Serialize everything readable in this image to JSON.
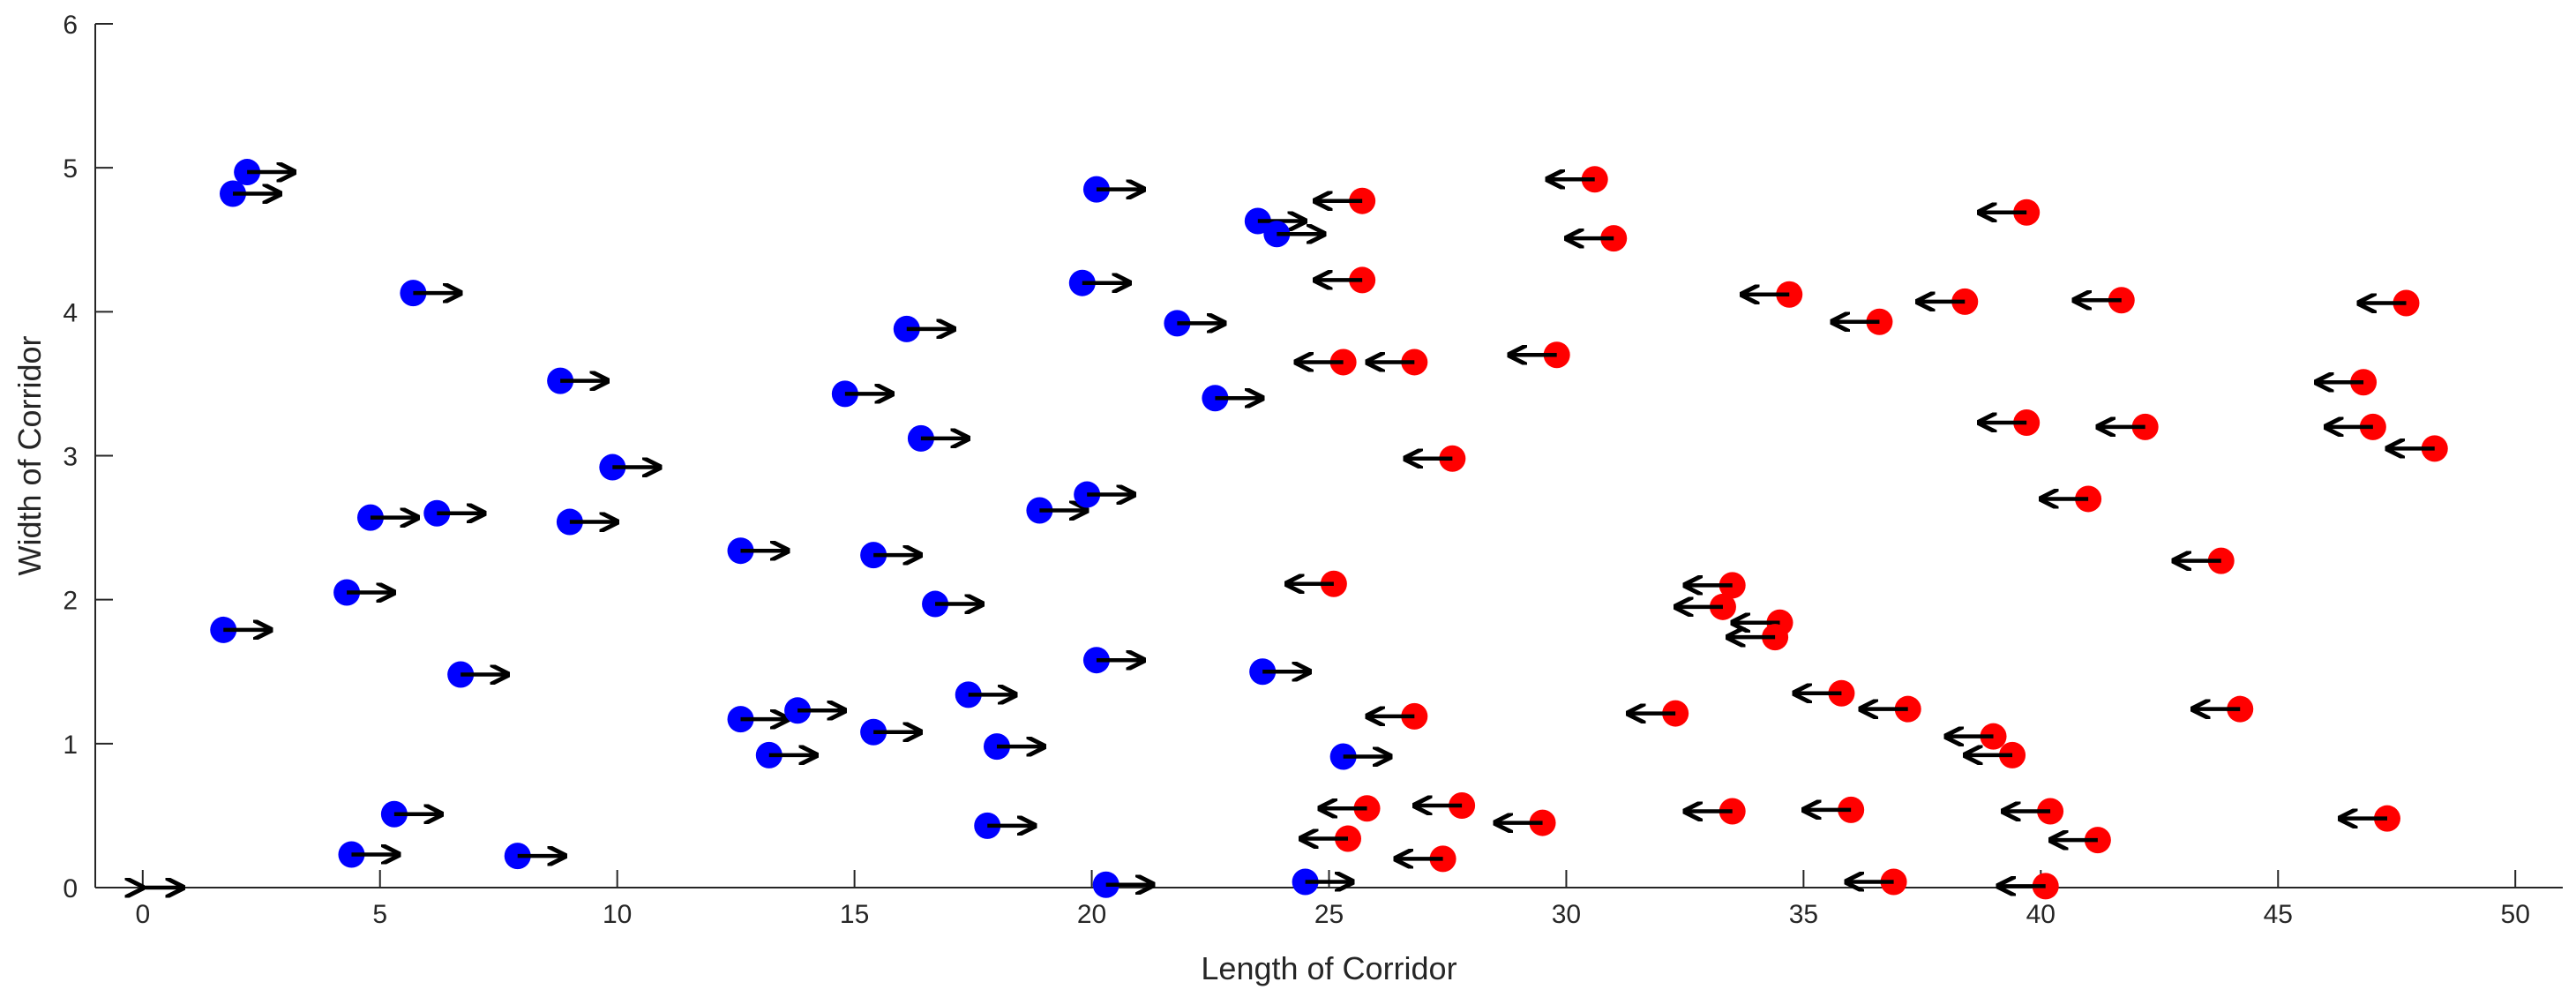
{
  "chart_data": {
    "type": "scatter",
    "title": "",
    "xlabel": "Length of Corridor",
    "ylabel": "Width of Corridor",
    "xlim": [
      -1,
      51
    ],
    "ylim": [
      0,
      6
    ],
    "x_ticks": [
      0,
      5,
      10,
      15,
      20,
      25,
      30,
      35,
      40,
      45,
      50
    ],
    "y_ticks": [
      0,
      1,
      2,
      3,
      4,
      5,
      6
    ],
    "grid": false,
    "marker_colors": {
      "blue": "#0000ff",
      "red": "#ff0000"
    },
    "arrow_color": "#000000",
    "arrow_length": 1.0,
    "legend_arrow": {
      "x": 0,
      "y": 0,
      "dx": 0.85,
      "double": true
    },
    "series": [
      {
        "color": "blue",
        "direction": "right",
        "points": [
          [
            2.2,
            4.97
          ],
          [
            1.9,
            4.82
          ],
          [
            5.7,
            4.13
          ],
          [
            8.8,
            3.52
          ],
          [
            9.9,
            2.92
          ],
          [
            4.8,
            2.57
          ],
          [
            6.2,
            2.6
          ],
          [
            9.0,
            2.54
          ],
          [
            4.3,
            2.05
          ],
          [
            1.7,
            1.79
          ],
          [
            6.7,
            1.48
          ],
          [
            4.4,
            0.23
          ],
          [
            5.3,
            0.51
          ],
          [
            7.9,
            0.22
          ],
          [
            12.6,
            2.34
          ],
          [
            12.6,
            1.17
          ],
          [
            13.8,
            1.23
          ],
          [
            13.2,
            0.92
          ],
          [
            14.8,
            3.43
          ],
          [
            15.4,
            2.31
          ],
          [
            15.4,
            1.08
          ],
          [
            16.1,
            3.88
          ],
          [
            16.4,
            3.12
          ],
          [
            16.7,
            1.97
          ],
          [
            17.4,
            1.34
          ],
          [
            18.0,
            0.98
          ],
          [
            17.8,
            0.43
          ],
          [
            18.9,
            2.62
          ],
          [
            19.8,
            4.2
          ],
          [
            19.9,
            2.73
          ],
          [
            20.1,
            4.85
          ],
          [
            20.1,
            1.58
          ],
          [
            20.3,
            0.02
          ],
          [
            21.8,
            3.92
          ],
          [
            22.6,
            3.4
          ],
          [
            23.5,
            4.63
          ],
          [
            23.9,
            4.54
          ],
          [
            23.6,
            1.5
          ],
          [
            25.3,
            0.91
          ],
          [
            24.5,
            0.04
          ]
        ]
      },
      {
        "color": "red",
        "direction": "left",
        "points": [
          [
            25.7,
            4.77
          ],
          [
            25.7,
            4.22
          ],
          [
            25.3,
            3.65
          ],
          [
            26.8,
            3.65
          ],
          [
            27.6,
            2.98
          ],
          [
            25.1,
            2.11
          ],
          [
            26.8,
            1.19
          ],
          [
            25.8,
            0.55
          ],
          [
            25.4,
            0.34
          ],
          [
            27.8,
            0.57
          ],
          [
            27.4,
            0.2
          ],
          [
            29.8,
            3.7
          ],
          [
            29.5,
            0.45
          ],
          [
            30.6,
            4.92
          ],
          [
            31.0,
            4.51
          ],
          [
            32.3,
            1.21
          ],
          [
            33.5,
            2.1
          ],
          [
            33.3,
            1.95
          ],
          [
            34.5,
            1.84
          ],
          [
            34.4,
            1.74
          ],
          [
            33.5,
            0.53
          ],
          [
            34.7,
            4.12
          ],
          [
            35.8,
            1.35
          ],
          [
            37.2,
            1.24
          ],
          [
            36.0,
            0.54
          ],
          [
            36.6,
            3.93
          ],
          [
            36.9,
            0.04
          ],
          [
            38.4,
            4.07
          ],
          [
            39.0,
            1.05
          ],
          [
            39.4,
            0.92
          ],
          [
            39.7,
            4.69
          ],
          [
            39.7,
            3.23
          ],
          [
            41.0,
            2.7
          ],
          [
            40.2,
            0.53
          ],
          [
            41.2,
            0.33
          ],
          [
            40.1,
            0.01
          ],
          [
            41.7,
            4.08
          ],
          [
            42.2,
            3.2
          ],
          [
            43.8,
            2.27
          ],
          [
            44.2,
            1.24
          ],
          [
            46.8,
            3.51
          ],
          [
            47.0,
            3.2
          ],
          [
            47.7,
            4.06
          ],
          [
            48.3,
            3.05
          ],
          [
            47.3,
            0.48
          ]
        ]
      }
    ]
  }
}
